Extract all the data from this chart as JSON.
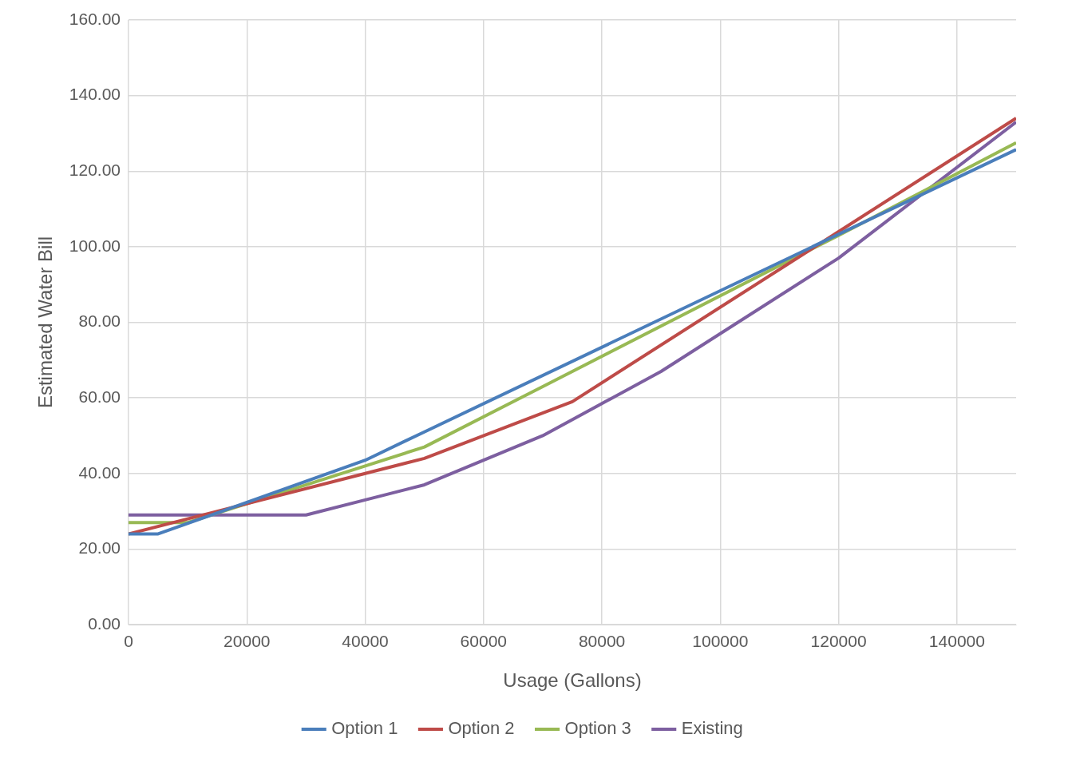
{
  "chart_data": {
    "type": "line",
    "xlabel": "Usage (Gallons)",
    "ylabel": "Estimated Water Bill",
    "xlim": [
      0,
      150000
    ],
    "xticks": [
      0,
      20000,
      40000,
      60000,
      80000,
      100000,
      120000,
      140000
    ],
    "ylim": [
      0,
      160
    ],
    "yticks": [
      {
        "value": 0,
        "label": "0.00"
      },
      {
        "value": 20,
        "label": "20.00"
      },
      {
        "value": 40,
        "label": "40.00"
      },
      {
        "value": 60,
        "label": "60.00"
      },
      {
        "value": 80,
        "label": "80.00"
      },
      {
        "value": 100,
        "label": "100.00"
      },
      {
        "value": 120,
        "label": "120.00"
      },
      {
        "value": 140,
        "label": "140.00"
      },
      {
        "value": 160,
        "label": "160.00"
      }
    ],
    "grid": true,
    "legend": "bottom",
    "marker": "none",
    "line_style": "solid",
    "series": [
      {
        "name": "Option 1",
        "color": "#4a7ebb",
        "x": [
          0,
          5000,
          40000,
          50000,
          150000
        ],
        "values": [
          24,
          24,
          43.5,
          51,
          125.7
        ]
      },
      {
        "name": "Option 2",
        "color": "#be4b48",
        "x": [
          0,
          20000,
          40000,
          50000,
          75000,
          120000,
          150000
        ],
        "values": [
          24,
          32,
          40,
          44,
          59,
          104,
          134
        ]
      },
      {
        "name": "Option 3",
        "color": "#98b954",
        "x": [
          0,
          10000,
          20000,
          40000,
          50000,
          70000,
          120000,
          150000
        ],
        "values": [
          27,
          27,
          32,
          42,
          47,
          63,
          103,
          127.5
        ]
      },
      {
        "name": "Existing",
        "color": "#7d5fa0",
        "x": [
          0,
          30000,
          40000,
          50000,
          70000,
          90000,
          120000,
          150000
        ],
        "values": [
          29,
          29,
          33,
          37,
          50,
          67,
          97,
          133
        ]
      }
    ]
  }
}
